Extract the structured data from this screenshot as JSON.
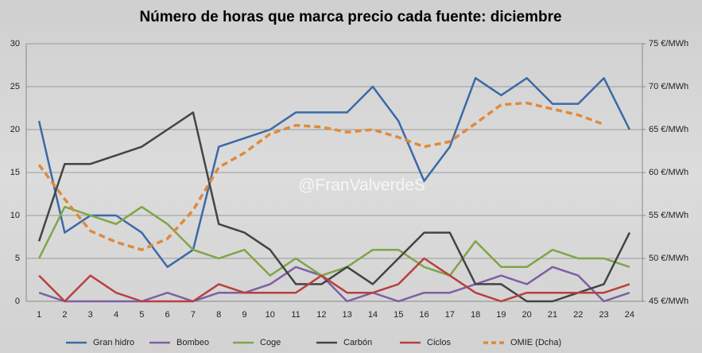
{
  "chart_data": {
    "type": "line",
    "title": "Número de horas que marca precio cada fuente: diciembre",
    "watermark": "@FranValverdeS",
    "categories": [
      1,
      2,
      3,
      4,
      5,
      6,
      7,
      8,
      9,
      10,
      11,
      12,
      13,
      14,
      15,
      16,
      17,
      18,
      19,
      20,
      21,
      22,
      23,
      24
    ],
    "ylim": [
      0,
      30
    ],
    "yticks": [
      0,
      5,
      10,
      15,
      20,
      25,
      30
    ],
    "y2lim": [
      45,
      75
    ],
    "y2ticks": [
      {
        "value": 45,
        "label": "45 €/MWh"
      },
      {
        "value": 50,
        "label": "50 €/MWh"
      },
      {
        "value": 55,
        "label": "55 €/MWh"
      },
      {
        "value": 60,
        "label": "60 €/MWh"
      },
      {
        "value": 65,
        "label": "65 €/MWh"
      },
      {
        "value": 70,
        "label": "70 €/MWh"
      },
      {
        "value": 75,
        "label": "75 €/MWh"
      }
    ],
    "grid": true,
    "legend": "bottom",
    "series": [
      {
        "name": "Gran hidro",
        "color": "#3a6aa8",
        "values": [
          21,
          8,
          10,
          10,
          8,
          4,
          6,
          18,
          19,
          20,
          22,
          22,
          22,
          25,
          21,
          14,
          18,
          26,
          24,
          26,
          23,
          23,
          26,
          20
        ]
      },
      {
        "name": "Bombeo",
        "color": "#7e5fa3",
        "values": [
          1,
          0,
          0,
          0,
          0,
          1,
          0,
          1,
          1,
          2,
          4,
          3,
          0,
          1,
          0,
          1,
          1,
          2,
          3,
          2,
          4,
          3,
          0,
          1
        ]
      },
      {
        "name": "Coge",
        "color": "#7fa548",
        "values": [
          5,
          11,
          10,
          9,
          11,
          9,
          6,
          5,
          6,
          3,
          5,
          3,
          4,
          6,
          6,
          4,
          3,
          7,
          4,
          4,
          6,
          5,
          5,
          4
        ]
      },
      {
        "name": "Carbón",
        "color": "#444444",
        "values": [
          7,
          16,
          16,
          17,
          18,
          20,
          22,
          9,
          8,
          6,
          2,
          2,
          4,
          2,
          5,
          8,
          8,
          2,
          2,
          0,
          0,
          1,
          2,
          8
        ]
      },
      {
        "name": "Ciclos",
        "color": "#b84040",
        "values": [
          3,
          0,
          3,
          1,
          0,
          0,
          0,
          2,
          1,
          1,
          1,
          3,
          1,
          1,
          2,
          5,
          3,
          1,
          0,
          1,
          1,
          1,
          1,
          2
        ]
      },
      {
        "name": "OMIE (Dcha)",
        "color": "#e08a3c",
        "dashed": true,
        "axis": "y2",
        "values": [
          60.9,
          56.9,
          53.2,
          51.9,
          51,
          52.3,
          55.6,
          60.6,
          62.3,
          64.5,
          65.5,
          65.3,
          64.7,
          65,
          64.1,
          63,
          63.6,
          65.7,
          67.9,
          68.1,
          67.4,
          66.7,
          65.6,
          null
        ]
      }
    ]
  }
}
